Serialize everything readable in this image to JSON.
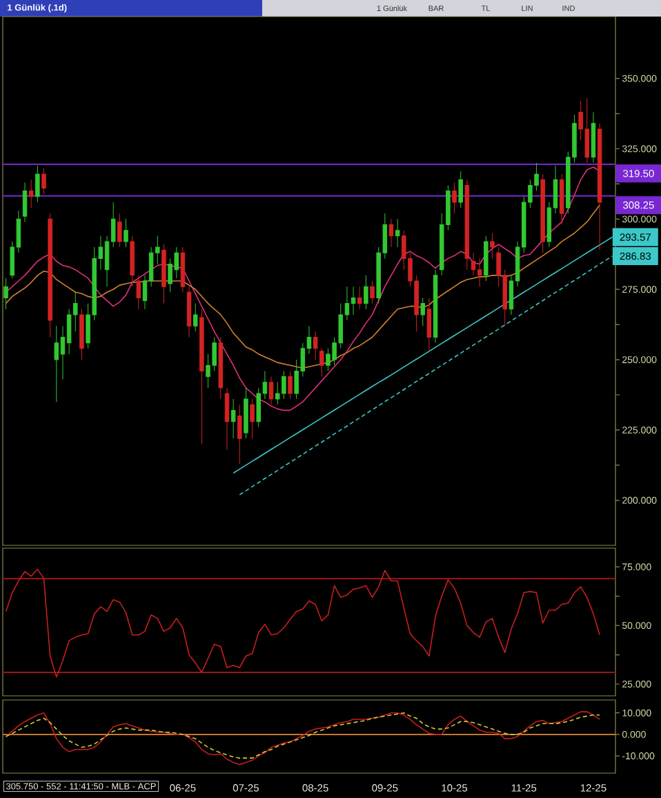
{
  "chart_data": [
    {
      "type": "candlestick",
      "title": "1 Günlük (.1d)",
      "annotations": [
        "1 Günlük",
        "BAR",
        "TL",
        "LIN",
        "IND"
      ],
      "categories": [
        null,
        null,
        null,
        null,
        null,
        null,
        null,
        null,
        null,
        null,
        null,
        null,
        null,
        null,
        null,
        null,
        null,
        null,
        null,
        null,
        null,
        null,
        null,
        null,
        null,
        null,
        null,
        null,
        null,
        null,
        null,
        null,
        null,
        null,
        null,
        null,
        null,
        null,
        null,
        null,
        null,
        null,
        null,
        null,
        null,
        null,
        null,
        null,
        null,
        null,
        null,
        null,
        null,
        null,
        null,
        null,
        null,
        null,
        null,
        null,
        null,
        null,
        null,
        null,
        null,
        null,
        null,
        null,
        null,
        null,
        null,
        null,
        null,
        null,
        null,
        null,
        null,
        null,
        null,
        null,
        null,
        null,
        null,
        null,
        null,
        null,
        null,
        null,
        null,
        null,
        null,
        null,
        null,
        null,
        null,
        null,
        null
      ],
      "ohlc": [
        [
          272,
          279,
          268,
          276
        ],
        [
          280,
          292,
          279,
          290
        ],
        [
          290,
          303,
          288,
          300
        ],
        [
          301,
          313,
          299,
          310
        ],
        [
          310,
          314,
          304,
          308
        ],
        [
          308,
          319,
          306,
          316
        ],
        [
          316,
          318,
          309,
          311
        ],
        [
          300,
          302,
          258,
          264
        ],
        [
          250,
          262,
          235,
          256
        ],
        [
          252,
          262,
          243,
          258
        ],
        [
          256,
          268,
          252,
          266
        ],
        [
          266,
          274,
          260,
          270
        ],
        [
          266,
          268,
          250,
          254
        ],
        [
          256,
          270,
          254,
          266
        ],
        [
          266,
          290,
          264,
          286
        ],
        [
          286,
          294,
          282,
          290
        ],
        [
          282,
          294,
          276,
          292
        ],
        [
          292,
          306,
          290,
          300
        ],
        [
          299,
          302,
          290,
          292
        ],
        [
          292,
          300,
          290,
          296
        ],
        [
          292,
          294,
          276,
          280
        ],
        [
          278,
          280,
          268,
          272
        ],
        [
          271,
          280,
          268,
          278
        ],
        [
          278,
          290,
          276,
          288
        ],
        [
          288,
          294,
          284,
          290
        ],
        [
          289,
          291,
          270,
          276
        ],
        [
          277,
          286,
          274,
          284
        ],
        [
          282,
          290,
          279,
          288
        ],
        [
          288,
          290,
          274,
          276
        ],
        [
          274,
          276,
          258,
          262
        ],
        [
          262,
          270,
          260,
          266
        ],
        [
          265,
          268,
          220,
          246
        ],
        [
          244,
          252,
          240,
          248
        ],
        [
          248,
          258,
          246,
          256
        ],
        [
          256,
          258,
          236,
          240
        ],
        [
          238,
          240,
          218,
          228
        ],
        [
          228,
          236,
          222,
          232
        ],
        [
          230,
          234,
          213,
          222
        ],
        [
          224,
          240,
          222,
          236
        ],
        [
          234,
          236,
          222,
          228
        ],
        [
          228,
          240,
          226,
          238
        ],
        [
          238,
          246,
          236,
          242
        ],
        [
          242,
          244,
          234,
          236
        ],
        [
          236,
          242,
          234,
          238
        ],
        [
          238,
          246,
          236,
          244
        ],
        [
          244,
          246,
          236,
          238
        ],
        [
          238,
          250,
          236,
          246
        ],
        [
          246,
          256,
          244,
          254
        ],
        [
          254,
          262,
          252,
          258
        ],
        [
          258,
          260,
          250,
          254
        ],
        [
          253,
          254,
          244,
          248
        ],
        [
          248,
          254,
          246,
          252
        ],
        [
          250,
          258,
          248,
          256
        ],
        [
          256,
          270,
          254,
          266
        ],
        [
          266,
          276,
          264,
          270
        ],
        [
          270,
          276,
          266,
          272
        ],
        [
          272,
          276,
          268,
          270
        ],
        [
          270,
          280,
          268,
          276
        ],
        [
          276,
          278,
          270,
          272
        ],
        [
          272,
          290,
          270,
          288
        ],
        [
          288,
          302,
          286,
          298
        ],
        [
          298,
          300,
          290,
          294
        ],
        [
          294,
          300,
          290,
          296
        ],
        [
          294,
          296,
          282,
          286
        ],
        [
          286,
          288,
          276,
          278
        ],
        [
          278,
          280,
          260,
          266
        ],
        [
          266,
          272,
          262,
          270
        ],
        [
          268,
          272,
          253,
          258
        ],
        [
          258,
          282,
          256,
          280
        ],
        [
          282,
          302,
          280,
          298
        ],
        [
          298,
          312,
          296,
          310
        ],
        [
          310,
          313,
          302,
          306
        ],
        [
          306,
          317,
          304,
          314
        ],
        [
          312,
          314,
          282,
          286
        ],
        [
          285,
          288,
          280,
          282
        ],
        [
          282,
          286,
          276,
          280
        ],
        [
          280,
          294,
          278,
          292
        ],
        [
          292,
          295,
          286,
          290
        ],
        [
          288,
          290,
          276,
          280
        ],
        [
          280,
          282,
          262,
          268
        ],
        [
          268,
          280,
          266,
          278
        ],
        [
          278,
          292,
          276,
          290
        ],
        [
          290,
          308,
          288,
          306
        ],
        [
          306,
          314,
          304,
          312
        ],
        [
          312,
          320,
          310,
          316
        ],
        [
          314,
          316,
          288,
          292
        ],
        [
          292,
          306,
          290,
          304
        ],
        [
          304,
          319,
          302,
          314
        ],
        [
          314,
          316,
          298,
          302
        ],
        [
          304,
          324,
          302,
          322
        ],
        [
          322,
          337,
          320,
          334
        ],
        [
          338,
          342,
          328,
          332
        ],
        [
          332,
          343,
          320,
          322
        ],
        [
          322,
          338,
          320,
          334
        ],
        [
          332,
          334,
          289,
          306
        ],
        null,
        null
      ],
      "colors": [
        "#32c832",
        "#32c832",
        "#32c832",
        "#32c832",
        "#d22323",
        "#32c832",
        "#d22323",
        "#d22323",
        "#32c832",
        "#32c832",
        "#32c832",
        "#32c832",
        "#d22323",
        "#32c832",
        "#32c832",
        "#32c832",
        "#32c832",
        "#32c832",
        "#d22323",
        "#32c832",
        "#d22323",
        "#d22323",
        "#32c832",
        "#32c832",
        "#32c832",
        "#d22323",
        "#32c832",
        "#32c832",
        "#d22323",
        "#d22323",
        "#32c832",
        "#d22323",
        "#32c832",
        "#32c832",
        "#d22323",
        "#d22323",
        "#32c832",
        "#d22323",
        "#32c832",
        "#d22323",
        "#32c832",
        "#32c832",
        "#d22323",
        "#32c832",
        "#32c832",
        "#d22323",
        "#32c832",
        "#32c832",
        "#32c832",
        "#d22323",
        "#d22323",
        "#32c832",
        "#32c832",
        "#32c832",
        "#32c832",
        "#32c832",
        "#d22323",
        "#32c832",
        "#d22323",
        "#32c832",
        "#32c832",
        "#d22323",
        "#32c832",
        "#d22323",
        "#d22323",
        "#d22323",
        "#32c832",
        "#d22323",
        "#32c832",
        "#32c832",
        "#32c832",
        "#d22323",
        "#32c832",
        "#d22323",
        "#d22323",
        "#d22323",
        "#32c832",
        "#d22323",
        "#d22323",
        "#d22323",
        "#32c832",
        "#32c832",
        "#32c832",
        "#32c832",
        "#32c832",
        "#d22323",
        "#32c832",
        "#32c832",
        "#d22323",
        "#32c832",
        "#32c832",
        "#d22323",
        "#d22323",
        "#32c832",
        "#d22323",
        null,
        null
      ],
      "series": [
        {
          "type": "line",
          "color": "#e0307e",
          "values": [
            274,
            276,
            278,
            280,
            282.5,
            285,
            286.5,
            287.5,
            285,
            283.5,
            283,
            282,
            280.5,
            279,
            276,
            273,
            271,
            269,
            270.5,
            273,
            277.5,
            279,
            280.5,
            282,
            283.5,
            284,
            283.5,
            283,
            282.5,
            278,
            273.5,
            269,
            264.5,
            260,
            256,
            252,
            248,
            243.5,
            240,
            238,
            236,
            235,
            233.5,
            232.5,
            232,
            232,
            233.5,
            235,
            237.5,
            240,
            242.5,
            245,
            247.5,
            250,
            253,
            256.5,
            259.5,
            263,
            266,
            271,
            276,
            280,
            284,
            287.5,
            288.5,
            287,
            286,
            284.5,
            282.5,
            284.5,
            286,
            287,
            288.5,
            287.5,
            284.5,
            284,
            287.5,
            289.5,
            291,
            289.5,
            288,
            286,
            287,
            287.5,
            290,
            292.5,
            295,
            297,
            299,
            303.5,
            308.5,
            314,
            317.5,
            318.5,
            317,
            null,
            null
          ]
        },
        {
          "type": "line",
          "color": "#d2822d",
          "values": [
            270,
            272.5,
            274,
            275.5,
            277.5,
            280,
            281.5,
            281,
            278.5,
            277,
            275.5,
            274,
            273.5,
            272.5,
            272,
            272.5,
            274,
            275,
            276.5,
            277,
            277.5,
            277.5,
            278,
            278,
            278,
            278,
            278,
            278,
            278,
            276.5,
            275,
            272.5,
            270,
            268,
            266,
            263,
            259.5,
            257,
            254.5,
            253.5,
            252,
            251,
            250,
            249,
            248.5,
            248,
            247.5,
            247,
            247.5,
            248,
            248.5,
            249,
            250,
            251.5,
            252.5,
            254,
            255,
            256.5,
            258,
            260.5,
            263,
            265.5,
            268,
            268.5,
            269,
            269,
            268.5,
            269.5,
            271.5,
            273,
            274.5,
            276,
            277.5,
            278.5,
            279,
            279.5,
            279.5,
            280,
            280,
            279.5,
            280,
            281,
            282.5,
            284,
            285.5,
            287,
            288.5,
            290,
            292,
            293.5,
            295,
            297,
            299,
            302,
            305,
            null,
            null
          ]
        },
        {
          "type": "line",
          "color": "#3cc8c8",
          "values": [
            null,
            null,
            null,
            null,
            null,
            null,
            null,
            null,
            null,
            null,
            null,
            null,
            null,
            null,
            null,
            null,
            null,
            null,
            null,
            null,
            null,
            null,
            null,
            null,
            null,
            null,
            null,
            null,
            null,
            null,
            null,
            null,
            null,
            null,
            null,
            null,
            209.7,
            211.1,
            212.5,
            213.9,
            215.3,
            216.7,
            218.1,
            219.5,
            220.9,
            222.3,
            223.7,
            225.1,
            226.5,
            227.9,
            229.3,
            230.7,
            232.1,
            233.5,
            234.9,
            236.3,
            237.7,
            239.1,
            240.5,
            241.9,
            243.2,
            244.6,
            246,
            247.4,
            248.8,
            250.2,
            251.6,
            253,
            254.4,
            255.8,
            257.2,
            258.6,
            260,
            261.4,
            262.8,
            264.2,
            265.6,
            267,
            268.4,
            269.8,
            271.2,
            272.6,
            274,
            275.4,
            276.8,
            278.2,
            279.6,
            281,
            282.4,
            283.8,
            285.2,
            286.6,
            288,
            289.4,
            290.8,
            292.2,
            293.57
          ],
          "value_labels": [
            null,
            null,
            null,
            null,
            null,
            null,
            null,
            null,
            null,
            null,
            null,
            null,
            null,
            null,
            null,
            null,
            null,
            null,
            null,
            null,
            null,
            null,
            null,
            null,
            null,
            null,
            null,
            null,
            null,
            null,
            null,
            null,
            null,
            null,
            null,
            null,
            null,
            null,
            null,
            null,
            null,
            null,
            null,
            null,
            null,
            null,
            null,
            null,
            null,
            null,
            null,
            null,
            null,
            null,
            null,
            null,
            null,
            null,
            null,
            null,
            null,
            null,
            null,
            null,
            null,
            null,
            null,
            null,
            null,
            null,
            null,
            null,
            null,
            null,
            null,
            null,
            null,
            null,
            null,
            null,
            null,
            null,
            null,
            null,
            null,
            null,
            null,
            null,
            null,
            null,
            null,
            null,
            null,
            null,
            null,
            null,
            "293.57"
          ]
        },
        {
          "type": "line",
          "color": "#3cc8c8",
          "line_style": "dashed",
          "values": [
            null,
            null,
            null,
            null,
            null,
            null,
            null,
            null,
            null,
            null,
            null,
            null,
            null,
            null,
            null,
            null,
            null,
            null,
            null,
            null,
            null,
            null,
            null,
            null,
            null,
            null,
            null,
            null,
            null,
            null,
            null,
            null,
            null,
            null,
            null,
            null,
            null,
            202,
            203.4,
            204.9,
            206.3,
            207.8,
            209.2,
            210.6,
            212.1,
            213.5,
            214.9,
            216.4,
            217.8,
            219.3,
            220.7,
            222.1,
            223.6,
            225,
            226.4,
            227.9,
            229.3,
            230.8,
            232.2,
            233.6,
            235.1,
            236.5,
            237.9,
            239.4,
            240.8,
            242.3,
            243.7,
            245.1,
            246.6,
            248,
            249.4,
            250.9,
            252.3,
            253.8,
            255.2,
            256.6,
            258.1,
            259.5,
            260.9,
            262.4,
            263.8,
            265.3,
            266.7,
            268.1,
            269.6,
            271,
            272.5,
            273.9,
            275.3,
            276.8,
            278.2,
            279.6,
            281.1,
            282.5,
            284,
            285.4,
            286.83
          ],
          "value_labels": [
            null,
            null,
            null,
            null,
            null,
            null,
            null,
            null,
            null,
            null,
            null,
            null,
            null,
            null,
            null,
            null,
            null,
            null,
            null,
            null,
            null,
            null,
            null,
            null,
            null,
            null,
            null,
            null,
            null,
            null,
            null,
            null,
            null,
            null,
            null,
            null,
            null,
            null,
            null,
            null,
            null,
            null,
            null,
            null,
            null,
            null,
            null,
            null,
            null,
            null,
            null,
            null,
            null,
            null,
            null,
            null,
            null,
            null,
            null,
            null,
            null,
            null,
            null,
            null,
            null,
            null,
            null,
            null,
            null,
            null,
            null,
            null,
            null,
            null,
            null,
            null,
            null,
            null,
            null,
            null,
            null,
            null,
            null,
            null,
            null,
            null,
            null,
            null,
            null,
            null,
            null,
            null,
            null,
            null,
            null,
            null,
            "286.83"
          ]
        }
      ],
      "ylim": [
        184,
        372
      ],
      "yticks": [
        {
          "value": 200,
          "label": "200.000"
        },
        {
          "value": 212.5,
          "label": null
        },
        {
          "value": 225,
          "label": "225.000"
        },
        {
          "value": 237.5,
          "label": null
        },
        {
          "value": 250,
          "label": "250.000"
        },
        {
          "value": 262.5,
          "label": null
        },
        {
          "value": 275,
          "label": "275.000"
        },
        {
          "value": 300,
          "label": "300.000"
        },
        {
          "value": 312.5,
          "label": null
        },
        {
          "value": 325,
          "label": "325.000"
        },
        {
          "value": 337.5,
          "label": null
        },
        {
          "value": 350,
          "label": "350.000"
        }
      ],
      "tick_labels": "y",
      "ref_lines": [
        {
          "axis": "y",
          "value": 319.5,
          "label": "319.50",
          "color": "#7828d2"
        },
        {
          "axis": "y",
          "value": 308.25,
          "label": "308.25",
          "color": "#7828d2"
        }
      ]
    },
    {
      "type": "line",
      "categories": [
        null,
        null,
        null,
        null,
        null,
        null,
        null,
        null,
        null,
        null,
        null,
        null,
        null,
        null,
        null,
        null,
        null,
        null,
        null,
        null,
        null,
        null,
        null,
        null,
        null,
        null,
        null,
        null,
        null,
        null,
        null,
        null,
        null,
        null,
        null,
        null,
        null,
        null,
        null,
        null,
        null,
        null,
        null,
        null,
        null,
        null,
        null,
        null,
        null,
        null,
        null,
        null,
        null,
        null,
        null,
        null,
        null,
        null,
        null,
        null,
        null,
        null,
        null,
        null,
        null,
        null,
        null,
        null,
        null,
        null,
        null,
        null,
        null,
        null,
        null,
        null,
        null,
        null,
        null,
        null,
        null,
        null,
        null,
        null,
        null,
        null,
        null,
        null,
        null,
        null,
        null,
        null,
        null,
        null,
        null,
        null,
        null
      ],
      "series": [
        {
          "color": "#c81e1e",
          "values": [
            56,
            64,
            69,
            73,
            71,
            74,
            70,
            37,
            28,
            35,
            43.5,
            45,
            46,
            46.5,
            55,
            58,
            56,
            61,
            60,
            55.5,
            46,
            46,
            47.5,
            54.5,
            53,
            47.5,
            49,
            53,
            49,
            37.5,
            34,
            30,
            36,
            42,
            41,
            32,
            33,
            32,
            37,
            38,
            47,
            50.5,
            46,
            46.5,
            49,
            52.5,
            56,
            57,
            60.5,
            59,
            52,
            54.5,
            67,
            62,
            63,
            65.5,
            66,
            67,
            62,
            66.5,
            73.5,
            69,
            69,
            57.5,
            46.5,
            43.5,
            41,
            37,
            54,
            62.5,
            69.5,
            66,
            59.5,
            50,
            47,
            45,
            51.5,
            53,
            45,
            38.5,
            48.5,
            55,
            64,
            64.5,
            64,
            51,
            56.5,
            56.5,
            59,
            59.5,
            64,
            66.5,
            62,
            55,
            46,
            null,
            null
          ]
        }
      ],
      "ylim": [
        20,
        83
      ],
      "yticks": [
        {
          "value": 25,
          "label": "25.000"
        },
        {
          "value": 37.5,
          "label": null
        },
        {
          "value": 50,
          "label": "50.000"
        },
        {
          "value": 62.5,
          "label": null
        },
        {
          "value": 75,
          "label": "75.000"
        }
      ],
      "tick_labels": "y",
      "ref_lines": [
        {
          "axis": "y",
          "value": 70,
          "color": "#a01414"
        },
        {
          "axis": "y",
          "value": 30,
          "color": "#a01414"
        }
      ]
    },
    {
      "type": "line",
      "categories": [
        null,
        null,
        null,
        null,
        null,
        null,
        null,
        null,
        null,
        null,
        null,
        null,
        null,
        null,
        null,
        null,
        null,
        null,
        null,
        null,
        null,
        null,
        null,
        null,
        null,
        null,
        null,
        null,
        "06-25",
        null,
        null,
        null,
        null,
        null,
        null,
        null,
        null,
        null,
        "07-25",
        null,
        null,
        null,
        null,
        null,
        null,
        null,
        null,
        null,
        null,
        "08-25",
        null,
        null,
        null,
        null,
        null,
        null,
        null,
        null,
        null,
        null,
        "09-25",
        null,
        null,
        null,
        null,
        null,
        null,
        null,
        null,
        null,
        null,
        "10-25",
        null,
        null,
        null,
        null,
        null,
        null,
        null,
        null,
        null,
        null,
        "11-25",
        null,
        null,
        null,
        null,
        null,
        null,
        null,
        null,
        null,
        null,
        "12-25",
        null,
        null,
        null
      ],
      "series": [
        {
          "color": "#c81e1e",
          "values": [
            -1,
            1.5,
            4,
            6,
            7.5,
            9,
            10,
            5,
            -2,
            -6,
            -8,
            -7,
            -7,
            -7,
            -6,
            -3.5,
            0,
            3.5,
            4.5,
            5,
            4,
            3,
            2,
            1.5,
            1,
            1,
            0.5,
            0,
            0,
            -1.5,
            -3.5,
            -7,
            -9,
            -9.5,
            -9,
            -11.5,
            -13,
            -14,
            -13,
            -12,
            -10,
            -8.5,
            -6,
            -5,
            -4,
            -3.5,
            -2,
            -0.5,
            1.5,
            2.5,
            3,
            3.5,
            4.5,
            5.5,
            6,
            7,
            7,
            7,
            7.5,
            8,
            9,
            10,
            10,
            9,
            7,
            4.5,
            2.5,
            0.5,
            0,
            0,
            4.5,
            7,
            8.5,
            6,
            4,
            2,
            1,
            1,
            0.5,
            -2,
            -2,
            -1,
            1.5,
            4,
            6,
            6.5,
            5,
            5.5,
            6,
            7.5,
            9,
            10.5,
            10.5,
            9,
            7,
            null,
            null
          ]
        },
        {
          "color": "#d2c83c",
          "line_style": "dashed",
          "values": [
            -1,
            0.5,
            2,
            3.5,
            5,
            6.5,
            7.5,
            5.5,
            2.5,
            -0.5,
            -3,
            -4.5,
            -6,
            -5.5,
            -4.5,
            -2.5,
            -0.5,
            1.5,
            2.5,
            3,
            2.5,
            2,
            2,
            2,
            1.5,
            1,
            1,
            0.5,
            0,
            -1,
            -2,
            -4,
            -6,
            -7.5,
            -8.5,
            -9.5,
            -10.5,
            -11,
            -11,
            -11,
            -9.5,
            -8,
            -7,
            -5.5,
            -4.5,
            -3.5,
            -2.5,
            -1.5,
            -0.5,
            1,
            2,
            3,
            4,
            4.5,
            5,
            5.5,
            6,
            6.5,
            7.5,
            8,
            8.5,
            9,
            9.5,
            10,
            8.5,
            7.5,
            5,
            3.5,
            2.5,
            2.5,
            3,
            4.5,
            6,
            6,
            5.5,
            4.5,
            3.5,
            2.5,
            1.5,
            0.5,
            0,
            0,
            1,
            3,
            4,
            5,
            5,
            5,
            5.5,
            6,
            7,
            8,
            8.5,
            9,
            9,
            null,
            null
          ]
        }
      ],
      "ylim": [
        -18,
        16
      ],
      "yticks": [
        {
          "value": -10,
          "label": "-10.000"
        },
        {
          "value": 0,
          "label": "0.000"
        },
        {
          "value": 10,
          "label": "10.000"
        }
      ],
      "ref_lines": [
        {
          "axis": "y",
          "value": 0,
          "color": "#c8782d"
        }
      ],
      "annotations": [
        "305.750 - 552 - 11:41:50 - MLB - ACP"
      ]
    }
  ]
}
